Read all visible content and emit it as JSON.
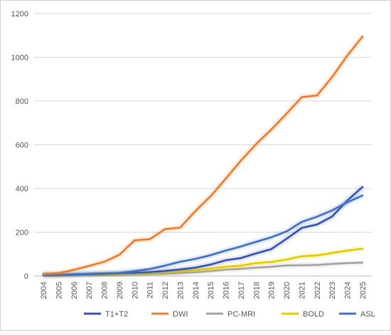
{
  "chart_data": {
    "type": "line",
    "categories": [
      "2004",
      "2005",
      "2006",
      "2007",
      "2008",
      "2009",
      "2010",
      "2011",
      "2012",
      "2013",
      "2014",
      "2015",
      "2016",
      "2017",
      "2018",
      "2019",
      "2020",
      "2021",
      "2022",
      "2023",
      "2024",
      "2025"
    ],
    "y_ticks": [
      "0",
      "200",
      "400",
      "600",
      "800",
      "1000",
      "1200"
    ],
    "ylim": [
      0,
      1200
    ],
    "grid": true,
    "legend_position": "bottom",
    "series": [
      {
        "name": "T1+T2",
        "color": "#3b56b4",
        "values": [
          3,
          4,
          6,
          8,
          10,
          13,
          15,
          18,
          23,
          30,
          38,
          52,
          72,
          82,
          103,
          123,
          170,
          220,
          235,
          272,
          345,
          407
        ]
      },
      {
        "name": "DWI",
        "color": "#ed7d31",
        "values": [
          10,
          13,
          28,
          46,
          65,
          97,
          163,
          168,
          214,
          221,
          297,
          365,
          445,
          528,
          603,
          670,
          742,
          818,
          825,
          910,
          1008,
          1095
        ]
      },
      {
        "name": "PC-MRI",
        "color": "#a5a5a5",
        "values": [
          2,
          2,
          3,
          4,
          5,
          6,
          7,
          8,
          10,
          13,
          17,
          22,
          29,
          33,
          38,
          42,
          48,
          49,
          50,
          55,
          59,
          61
        ]
      },
      {
        "name": "BOLD",
        "color": "#e6cc00",
        "values": [
          3,
          4,
          5,
          6,
          7,
          8,
          10,
          13,
          17,
          22,
          27,
          33,
          42,
          47,
          59,
          64,
          75,
          90,
          94,
          105,
          116,
          125
        ]
      },
      {
        "name": "ASL",
        "color": "#4472c4",
        "values": [
          5,
          6,
          8,
          10,
          12,
          14,
          22,
          32,
          47,
          65,
          78,
          95,
          116,
          135,
          156,
          177,
          204,
          247,
          271,
          300,
          337,
          368
        ]
      }
    ],
    "plot_series_order": [
      "PC-MRI",
      "BOLD",
      "T1+T2",
      "ASL",
      "DWI"
    ]
  }
}
